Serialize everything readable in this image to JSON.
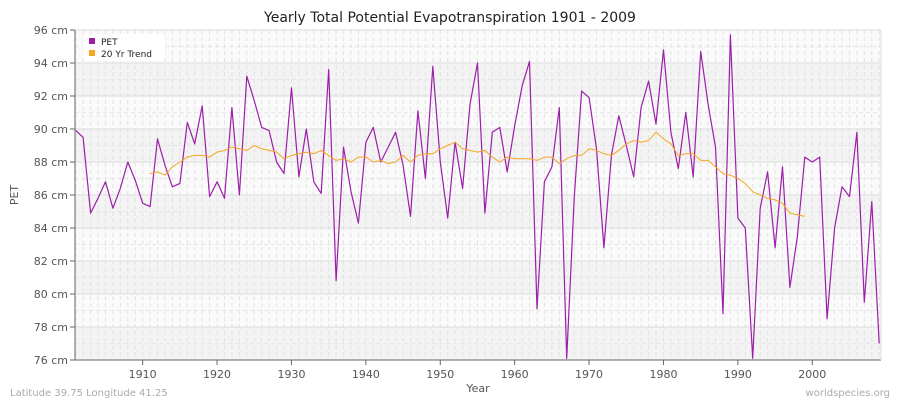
{
  "chart_data": {
    "type": "line",
    "title": "Yearly Total Potential Evapotranspiration 1901 - 2009",
    "xlabel": "Year",
    "ylabel": "PET",
    "xlim": [
      1901,
      2009
    ],
    "ylim": [
      76,
      96
    ],
    "x_ticks": [
      "1910",
      "1920",
      "1930",
      "1940",
      "1950",
      "1960",
      "1970",
      "1980",
      "1990",
      "2000"
    ],
    "y_ticks": [
      "76 cm",
      "78 cm",
      "80 cm",
      "82 cm",
      "84 cm",
      "86 cm",
      "88 cm",
      "90 cm",
      "92 cm",
      "94 cm",
      "96 cm"
    ],
    "grid": true,
    "legend_position": "top-left",
    "series": [
      {
        "name": "PET",
        "color": "#9b1fa8",
        "start_year": 1901,
        "values": [
          89.9,
          89.5,
          84.9,
          85.8,
          86.8,
          85.2,
          86.4,
          88.0,
          86.9,
          85.5,
          85.3,
          89.4,
          87.8,
          86.5,
          86.7,
          90.4,
          89.1,
          91.4,
          85.9,
          86.8,
          85.8,
          91.3,
          86.0,
          93.2,
          91.7,
          90.1,
          89.9,
          88.0,
          87.3,
          92.5,
          87.1,
          90.0,
          86.8,
          86.1,
          93.6,
          80.8,
          88.9,
          86.2,
          84.3,
          89.2,
          90.1,
          88.0,
          88.9,
          89.8,
          87.8,
          84.7,
          91.1,
          87.0,
          93.8,
          88.0,
          84.6,
          89.2,
          86.4,
          91.5,
          94.0,
          84.9,
          89.8,
          90.1,
          87.4,
          90.2,
          92.6,
          94.1,
          79.1,
          86.8,
          87.7,
          91.3,
          76.1,
          85.8,
          92.3,
          91.9,
          88.8,
          82.8,
          88.4,
          90.8,
          89.0,
          87.1,
          91.3,
          92.9,
          90.3,
          94.8,
          89.8,
          87.6,
          91.0,
          87.1,
          94.7,
          91.5,
          88.9,
          78.8,
          95.7,
          84.6,
          84.0,
          76.1,
          85.2,
          87.4,
          82.8,
          87.7,
          80.4,
          83.5,
          88.3,
          88.0,
          88.3,
          78.5,
          84.0,
          86.5,
          85.9,
          89.8,
          79.5,
          85.6,
          77.0
        ]
      },
      {
        "name": "20 Yr Trend",
        "color": "#f5a623",
        "start_year": 1911,
        "values": [
          87.3,
          87.4,
          87.2,
          87.7,
          88.0,
          88.3,
          88.4,
          88.4,
          88.3,
          88.6,
          88.7,
          88.9,
          88.8,
          88.7,
          89.0,
          88.8,
          88.7,
          88.6,
          88.2,
          88.4,
          88.5,
          88.6,
          88.5,
          88.7,
          88.4,
          88.1,
          88.2,
          88.0,
          88.3,
          88.3,
          88.0,
          88.1,
          87.9,
          88.0,
          88.4,
          88.0,
          88.4,
          88.5,
          88.5,
          88.8,
          89.0,
          89.2,
          88.8,
          88.7,
          88.6,
          88.7,
          88.3,
          88.0,
          88.3,
          88.2,
          88.2,
          88.2,
          88.1,
          88.3,
          88.3,
          87.9,
          88.2,
          88.4,
          88.4,
          88.8,
          88.7,
          88.5,
          88.4,
          88.7,
          89.1,
          89.3,
          89.2,
          89.3,
          89.8,
          89.4,
          89.1,
          88.4,
          88.5,
          88.5,
          88.1,
          88.1,
          87.7,
          87.3,
          87.2,
          87.0,
          86.7,
          86.2,
          86.0,
          85.8,
          85.7,
          85.5,
          84.9,
          84.8,
          84.7
        ]
      }
    ]
  },
  "footer": {
    "location": "Latitude 39.75 Longitude 41.25",
    "source": "worldspecies.org"
  }
}
